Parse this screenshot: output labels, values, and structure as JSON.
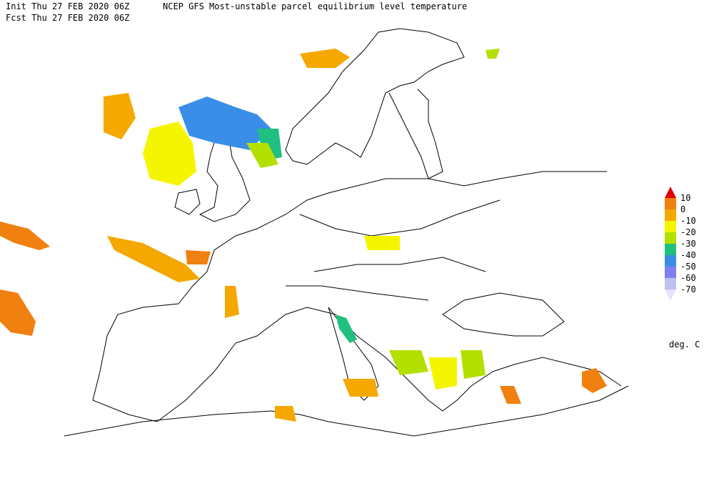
{
  "header": {
    "init": "Init  Thu 27 FEB 2020 06Z",
    "title": "NCEP GFS Most-unstable parcel equilibrium level temperature",
    "fcst": "Fcst Thu 27 FEB 2020 06Z"
  },
  "legend": {
    "ticks": [
      10,
      0,
      -10,
      -20,
      -30,
      -40,
      -50,
      -60,
      -70
    ],
    "colors": [
      "#e00000",
      "#f08010",
      "#f5a800",
      "#f5f500",
      "#b4e000",
      "#20c080",
      "#3a8ee8",
      "#8080f0",
      "#c0c0f0",
      "#e4e4fa"
    ],
    "unit": "deg. C"
  }
}
